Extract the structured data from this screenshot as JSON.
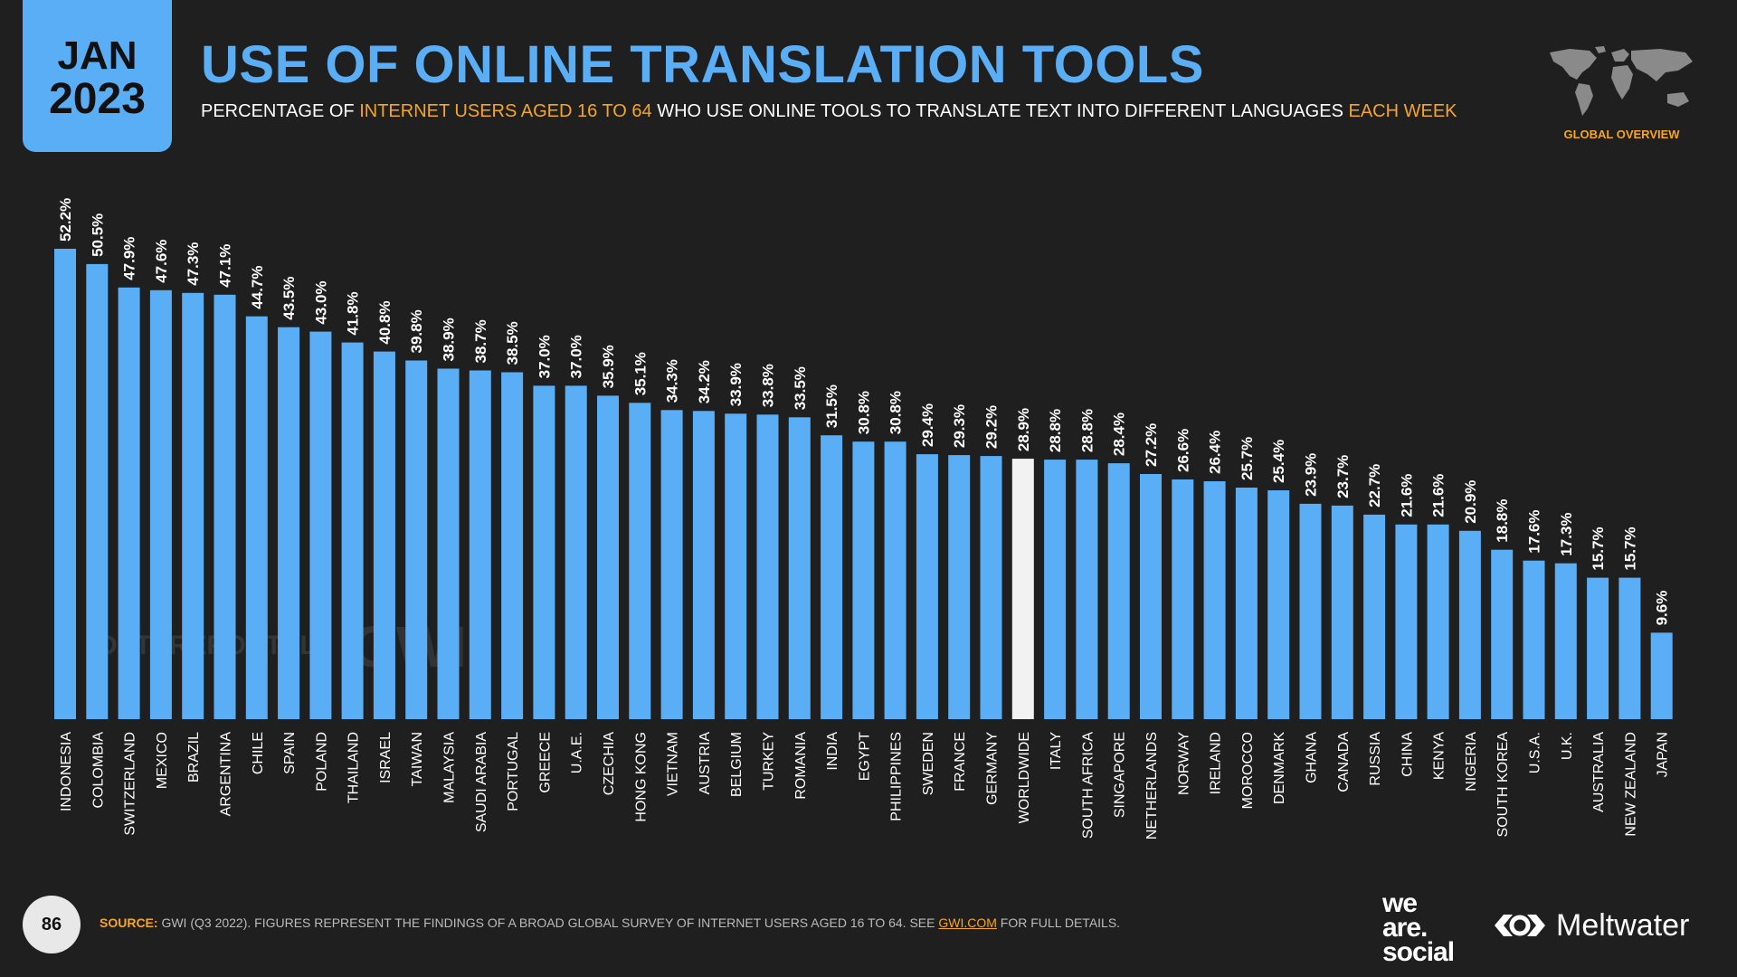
{
  "header": {
    "month": "JAN",
    "year": "2023",
    "title": "USE OF ONLINE TRANSLATION TOOLS",
    "subtitle": {
      "p1": "PERCENTAGE OF ",
      "p2": "INTERNET USERS AGED 16 TO 64",
      "p3": " WHO USE ONLINE TOOLS TO TRANSLATE TEXT INTO DIFFERENT LANGUAGES ",
      "p4": "EACH WEEK"
    },
    "overview_label": "GLOBAL OVERVIEW"
  },
  "colors": {
    "accent": "#5aaef5",
    "highlight_bar": "#f2f2f2",
    "orange": "#f5a623",
    "background": "#1f1f1f"
  },
  "chart_data": {
    "type": "bar",
    "title": "",
    "xlabel": "",
    "ylabel": "",
    "value_suffix": "%",
    "ylim": [
      0,
      52.2
    ],
    "highlight_category": "WORLDWIDE",
    "categories": [
      "INDONESIA",
      "COLOMBIA",
      "SWITZERLAND",
      "MEXICO",
      "BRAZIL",
      "ARGENTINA",
      "CHILE",
      "SPAIN",
      "POLAND",
      "THAILAND",
      "ISRAEL",
      "TAIWAN",
      "MALAYSIA",
      "SAUDI ARABIA",
      "PORTUGAL",
      "GREECE",
      "U.A.E.",
      "CZECHIA",
      "HONG KONG",
      "VIETNAM",
      "AUSTRIA",
      "BELGIUM",
      "TURKEY",
      "ROMANIA",
      "INDIA",
      "EGYPT",
      "PHILIPPINES",
      "SWEDEN",
      "FRANCE",
      "GERMANY",
      "WORLDWIDE",
      "ITALY",
      "SOUTH AFRICA",
      "SINGAPORE",
      "NETHERLANDS",
      "NORWAY",
      "IRELAND",
      "MOROCCO",
      "DENMARK",
      "GHANA",
      "CANADA",
      "RUSSIA",
      "CHINA",
      "KENYA",
      "NIGERIA",
      "SOUTH KOREA",
      "U.S.A.",
      "U.K.",
      "AUSTRALIA",
      "NEW ZEALAND",
      "JAPAN"
    ],
    "values": [
      52.2,
      50.5,
      47.9,
      47.6,
      47.3,
      47.1,
      44.7,
      43.5,
      43.0,
      41.8,
      40.8,
      39.8,
      38.9,
      38.7,
      38.5,
      37.0,
      37.0,
      35.9,
      35.1,
      34.3,
      34.2,
      33.9,
      33.8,
      33.5,
      31.5,
      30.8,
      30.8,
      29.4,
      29.3,
      29.2,
      28.9,
      28.8,
      28.8,
      28.4,
      27.2,
      26.6,
      26.4,
      25.7,
      25.4,
      23.9,
      23.7,
      22.7,
      21.6,
      21.6,
      20.9,
      18.8,
      17.6,
      17.3,
      15.7,
      15.7,
      9.6
    ],
    "labels": [
      "52.2%",
      "50.5%",
      "47.9%",
      "47.6%",
      "47.3%",
      "47.1%",
      "44.7%",
      "43.5%",
      "43.0%",
      "41.8%",
      "40.8%",
      "39.8%",
      "38.9%",
      "38.7%",
      "38.5%",
      "37.0%",
      "37.0%",
      "35.9%",
      "35.1%",
      "34.3%",
      "34.2%",
      "33.9%",
      "33.8%",
      "33.5%",
      "31.5%",
      "30.8%",
      "30.8%",
      "29.4%",
      "29.3%",
      "29.2%",
      "28.9%",
      "28.8%",
      "28.8%",
      "28.4%",
      "27.2%",
      "26.6%",
      "26.4%",
      "25.7%",
      "25.4%",
      "23.9%",
      "23.7%",
      "22.7%",
      "21.6%",
      "21.6%",
      "20.9%",
      "18.8%",
      "17.6%",
      "17.3%",
      "15.7%",
      "15.7%",
      "9.6%"
    ]
  },
  "watermarks": {
    "datareportal": "DATAREPORTAL",
    "gwi": "GWI."
  },
  "footer": {
    "page_number": "86",
    "source_label": "SOURCE:",
    "source_text": " GWI (Q3 2022). FIGURES REPRESENT THE FINDINGS OF A BROAD GLOBAL SURVEY OF INTERNET USERS AGED 16 TO 64. SEE ",
    "source_link": "GWI.COM",
    "source_end": " FOR FULL DETAILS.",
    "brand_we": "we",
    "brand_are": "are.",
    "brand_social": "social",
    "brand_meltwater": "Meltwater"
  }
}
